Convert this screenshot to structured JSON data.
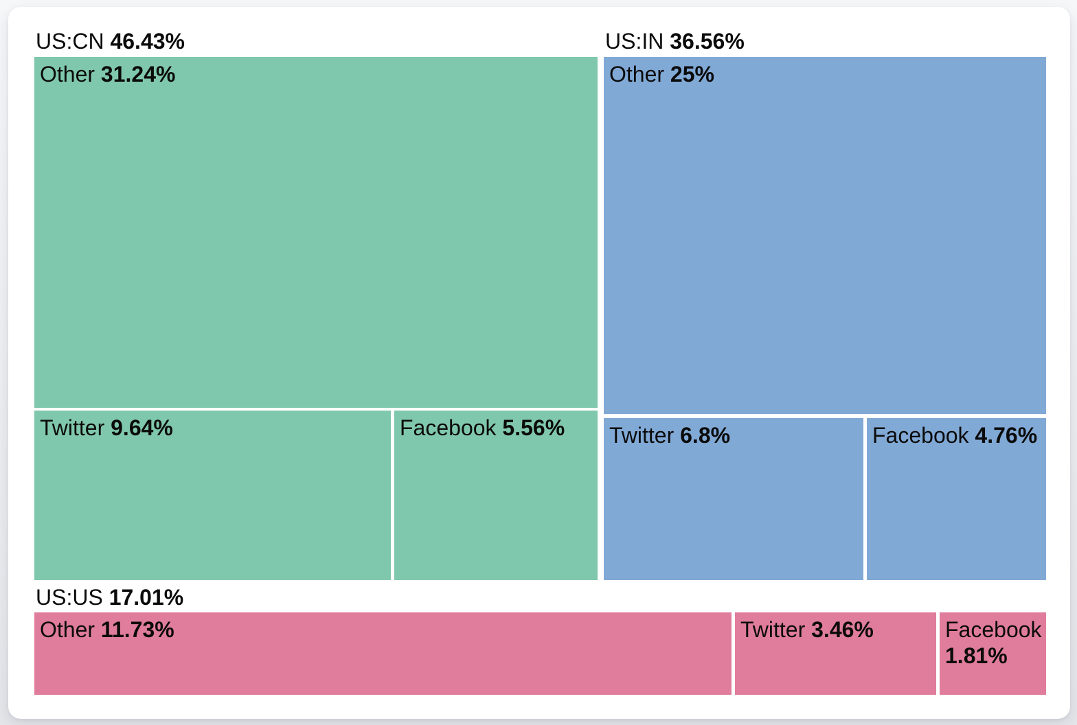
{
  "chart_data": {
    "type": "treemap",
    "unit": "%",
    "legend": "none",
    "groups": [
      {
        "name": "US:CN",
        "value": 46.43,
        "value_label": "46.43%",
        "color": "#80C8AD",
        "children": [
          {
            "name": "Other",
            "value": 31.24,
            "value_label": "31.24%"
          },
          {
            "name": "Twitter",
            "value": 9.64,
            "value_label": "9.64%"
          },
          {
            "name": "Facebook",
            "value": 5.56,
            "value_label": "5.56%"
          }
        ]
      },
      {
        "name": "US:IN",
        "value": 36.56,
        "value_label": "36.56%",
        "color": "#81A9D6",
        "children": [
          {
            "name": "Other",
            "value": 25,
            "value_label": "25%"
          },
          {
            "name": "Twitter",
            "value": 6.8,
            "value_label": "6.8%"
          },
          {
            "name": "Facebook",
            "value": 4.76,
            "value_label": "4.76%"
          }
        ]
      },
      {
        "name": "US:US",
        "value": 17.01,
        "value_label": "17.01%",
        "color": "#E07D9C",
        "children": [
          {
            "name": "Other",
            "value": 11.73,
            "value_label": "11.73%"
          },
          {
            "name": "Twitter",
            "value": 3.46,
            "value_label": "3.46%"
          },
          {
            "name": "Facebook",
            "value": 1.81,
            "value_label": "1.81%"
          }
        ]
      }
    ],
    "colors": {
      "us_cn": "#80C8AD",
      "us_in": "#81A9D6",
      "us_us": "#E07D9C",
      "text": "#0b0b0b",
      "card_background": "#ffffff"
    }
  }
}
